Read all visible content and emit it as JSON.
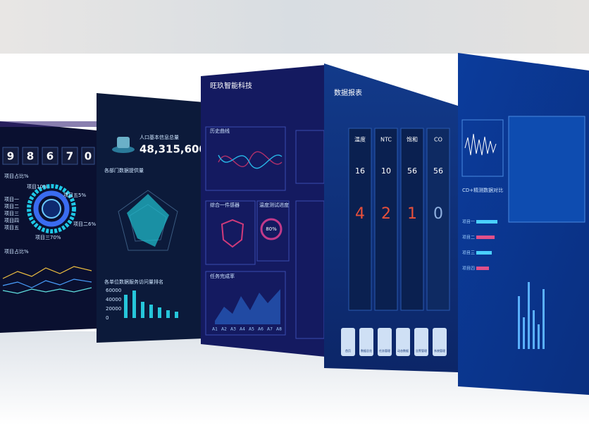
{
  "panel_1": {
    "digits": [
      "9",
      "8",
      "6",
      "7",
      "0"
    ],
    "section_1": "项目占比%",
    "legend": [
      "项目一",
      "项目二",
      "项目三",
      "项目四",
      "项目五"
    ],
    "labels": [
      "项目10%",
      "项目五5%",
      "项目二6%",
      "项目三70%"
    ],
    "section_2": "项目占比%"
  },
  "panel_2": {
    "caption": "人口基本信息总量",
    "total": "48,315,600",
    "chart_1": "各部门数据提供量",
    "chart_2": "各单位数据服务访问量排名",
    "yticks": [
      "60000",
      "40000",
      "20000",
      "0"
    ]
  },
  "panel_3": {
    "title": "旺玖智能科技",
    "chart_1": "历史曲线",
    "chart_2": "综合一件感器",
    "chart_3": "温度测试进度",
    "gauge": "80%",
    "chart_4": "任务完成率",
    "xticks": [
      "A1",
      "A2",
      "A3",
      "A4",
      "A5",
      "A6",
      "A7",
      "A8"
    ]
  },
  "panel_4": {
    "title": "数据报表",
    "tabs": [
      "温度",
      "NTC",
      "饱和",
      "CO"
    ],
    "counts": [
      "16",
      "10",
      "56",
      "56"
    ],
    "alerts": [
      "4",
      "2",
      "1",
      "0"
    ],
    "buttons": [
      "首页",
      "数据总览",
      "任务管理",
      "动态数据",
      "告警管理",
      "系统管理"
    ]
  },
  "panel_5": {
    "chart_1": "CD+精测数据对比",
    "items": [
      "项目一",
      "项目二",
      "项目三",
      "项目四"
    ]
  }
}
